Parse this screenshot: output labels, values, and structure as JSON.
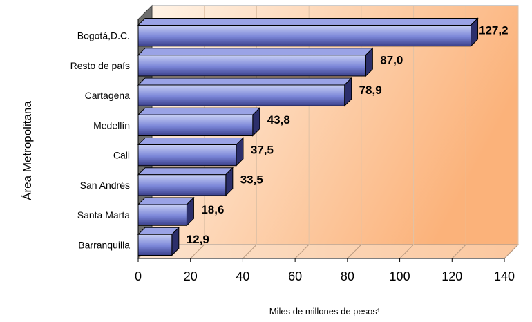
{
  "chart_data": {
    "type": "bar",
    "orientation": "horizontal",
    "categories": [
      "Bogotá,D.C.",
      "Resto de país",
      "Cartagena",
      "Medellín",
      "Cali",
      "San Andrés",
      "Santa Marta",
      "Barranquilla"
    ],
    "values": [
      127.2,
      87.0,
      78.9,
      43.8,
      37.5,
      33.5,
      18.6,
      12.9
    ],
    "value_labels": [
      "127,2",
      "87,0",
      "78,9",
      "43,8",
      "37,5",
      "33,5",
      "18,6",
      "12,9"
    ],
    "xlabel": "Miles de millones de pesos¹",
    "ylabel": "Área Metropolitana",
    "xlim": [
      0,
      140
    ],
    "xticks": [
      "0",
      "20",
      "40",
      "60",
      "80",
      "100",
      "120",
      "140"
    ],
    "grid": "vertical",
    "legend": "none",
    "colors": {
      "bar_light": "#c8d0f4",
      "bar_mid": "#7b86d8",
      "bar_dark": "#3a3f8a",
      "bar_side": "#2c2f6b",
      "background_light": "#fff1e4",
      "background_dark": "#fbb27a",
      "wall_dark": "#6e6e6e"
    }
  }
}
